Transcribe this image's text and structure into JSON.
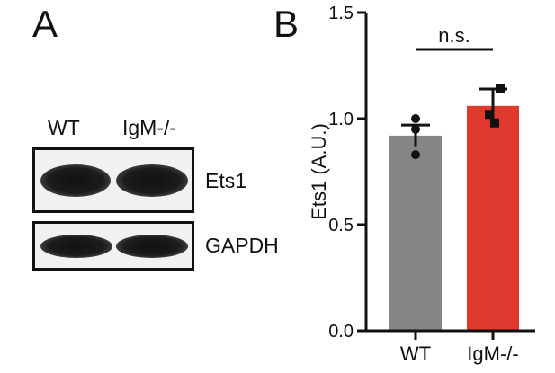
{
  "panel_a": {
    "letter": "A",
    "lanes": [
      "WT",
      "IgM-/-"
    ],
    "blots": [
      {
        "label": "Ets1"
      },
      {
        "label": "GAPDH"
      }
    ]
  },
  "panel_b": {
    "letter": "B"
  },
  "chart_data": {
    "type": "bar",
    "categories": [
      "WT",
      "IgM-/-"
    ],
    "values": [
      0.92,
      1.06
    ],
    "errors": [
      0.05,
      0.08
    ],
    "points": [
      [
        1.0,
        0.95,
        0.83
      ],
      [
        1.14,
        1.02,
        0.98
      ]
    ],
    "colors": [
      "#858585",
      "#e03a2e"
    ],
    "ylabel": "Ets1 (A.U.)",
    "ylim": [
      0,
      1.5
    ],
    "yticks": [
      0.0,
      0.5,
      1.0,
      1.5
    ],
    "ytick_labels": [
      "0.0",
      "0.5",
      "1.0",
      "1.5"
    ],
    "annotation": "n.s."
  }
}
